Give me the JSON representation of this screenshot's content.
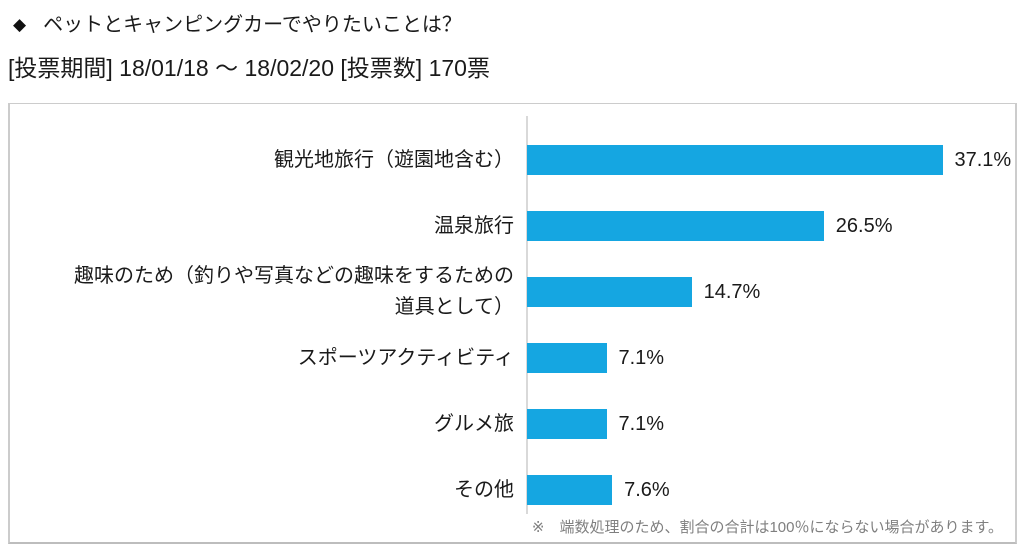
{
  "header": {
    "bullet": "◆",
    "title": "ペットとキャンピングカーでやりたいことは？",
    "subtitle": "[投票期間] 18/01/18 ～ 18/02/20 [投票数] 170票"
  },
  "chart_data": {
    "type": "bar",
    "orientation": "horizontal",
    "title": "ペットとキャンピングカーでやりたいことは？",
    "categories": [
      "観光地旅行（遊園地含む）",
      "温泉旅行",
      "趣味のため（釣りや写真などの趣味をするための\n道具として）",
      "スポーツアクティビティ",
      "グルメ旅",
      "その他"
    ],
    "values": [
      37.1,
      26.5,
      14.7,
      7.1,
      7.1,
      7.6
    ],
    "value_labels": [
      "37.1%",
      "26.5%",
      "14.7%",
      "7.1%",
      "7.1%",
      "7.6%"
    ],
    "unit": "percent",
    "xlim": [
      0,
      40
    ],
    "grid": false,
    "legend_position": "none",
    "bar_color": "#15A6E1",
    "xlabel": "",
    "ylabel": ""
  },
  "footnote": "※　端数処理のため、割合の合計は100％にならない場合があります。",
  "colors": {
    "bar": "#15A6E1",
    "panel_border": "#CCCCCC",
    "axis_line": "#D9D9D9",
    "footnote_text": "#7F7F7F",
    "text": "#1A1A1A",
    "background": "#FFFFFF"
  }
}
